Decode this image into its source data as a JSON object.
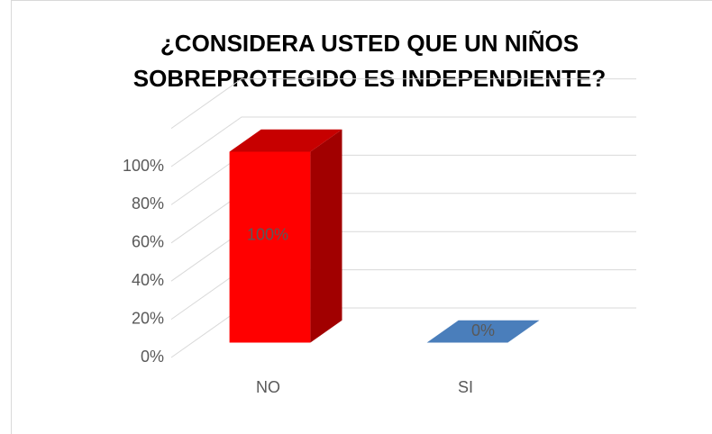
{
  "chart_data": {
    "type": "bar3d",
    "title": [
      "¿CONSIDERA USTED QUE UN NIÑOS",
      "SOBREPROTEGIDO ES INDEPENDIENTE?"
    ],
    "categories": [
      "NO",
      "SI"
    ],
    "values": [
      100,
      0
    ],
    "value_labels": [
      "100%",
      "0%"
    ],
    "colors": [
      "#ff0000",
      "#4a7ebb"
    ],
    "ylim": [
      0,
      120
    ],
    "yticks": [
      {
        "value": 0,
        "label": "0%"
      },
      {
        "value": 20,
        "label": "20%"
      },
      {
        "value": 40,
        "label": "40%"
      },
      {
        "value": 60,
        "label": "60%"
      },
      {
        "value": 80,
        "label": "80%"
      },
      {
        "value": 100,
        "label": "100%"
      }
    ],
    "grid": true
  }
}
